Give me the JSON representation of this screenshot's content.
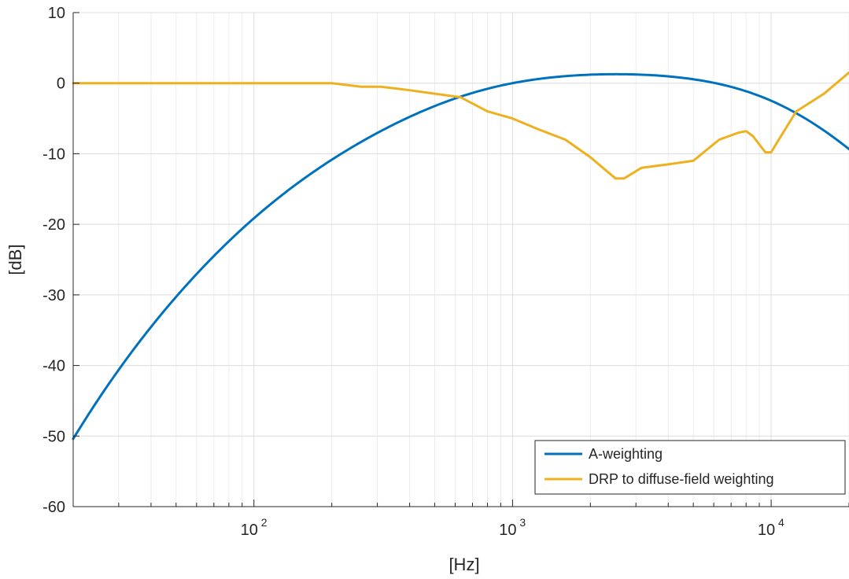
{
  "chart_data": {
    "type": "line",
    "title": "",
    "xlabel": "[Hz]",
    "ylabel": "[dB]",
    "xscale": "log",
    "xlim": [
      20,
      20000
    ],
    "ylim": [
      -60,
      10
    ],
    "yticks": [
      10,
      0,
      -10,
      -20,
      -30,
      -40,
      -50,
      -60
    ],
    "ytick_labels": [
      "10",
      "0",
      "-10",
      "-20",
      "-30",
      "-40",
      "-50",
      "-60"
    ],
    "xticks": [
      {
        "value": 100,
        "base": "10",
        "exp": "2"
      },
      {
        "value": 1000,
        "base": "10",
        "exp": "3"
      },
      {
        "value": 10000,
        "base": "10",
        "exp": "4"
      }
    ],
    "grid": true,
    "legend_position": "bottom-right",
    "series": [
      {
        "name": "A-weighting",
        "color": "#0072BD",
        "function": "A-weighting",
        "x": [
          20,
          50,
          100,
          200,
          500,
          1000,
          2500,
          5000,
          10000,
          20000
        ],
        "y": [
          -50.5,
          -30.2,
          -19.1,
          -10.9,
          -3.2,
          0.0,
          1.3,
          0.5,
          -2.5,
          -9.3
        ]
      },
      {
        "name": "DRP to diffuse-field weighting",
        "color": "#EDB120",
        "x": [
          20,
          100,
          200,
          260,
          310,
          400,
          500,
          630,
          800,
          1000,
          1250,
          1600,
          2000,
          2500,
          2700,
          3150,
          4000,
          5000,
          6300,
          7500,
          8000,
          8500,
          9500,
          10000,
          10500,
          12500,
          16000,
          20000
        ],
        "y": [
          0,
          0,
          0,
          -0.5,
          -0.5,
          -1.0,
          -1.5,
          -2.0,
          -4.0,
          -5.0,
          -6.5,
          -8.0,
          -10.5,
          -13.5,
          -13.5,
          -12.0,
          -11.5,
          -11.0,
          -8.0,
          -7.0,
          -6.8,
          -7.5,
          -9.8,
          -9.8,
          -8.5,
          -4.0,
          -1.5,
          1.5
        ]
      }
    ]
  }
}
